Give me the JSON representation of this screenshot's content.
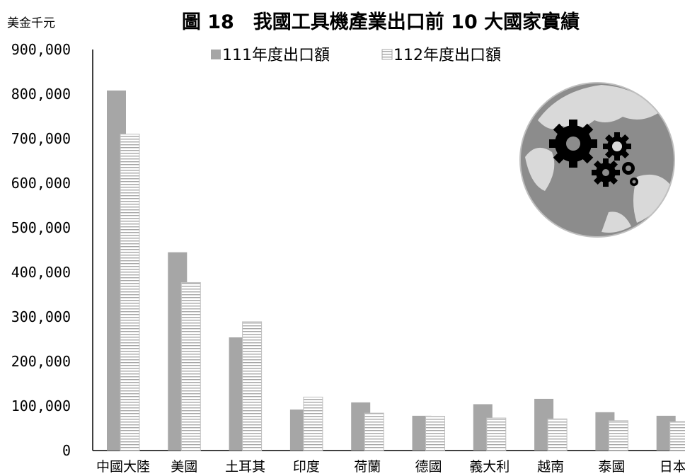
{
  "chart_data": {
    "type": "bar",
    "title": "圖 18　我國工具機產業出口前 10 大國家實績",
    "unit_label": "美金千元",
    "categories": [
      "中國大陸",
      "美國",
      "土耳其",
      "印度",
      "荷蘭",
      "德國",
      "義大利",
      "越南",
      "泰國",
      "日本"
    ],
    "series": [
      {
        "name": "111年度出口額",
        "values": [
          808000,
          445000,
          254000,
          92000,
          108000,
          78000,
          104000,
          116000,
          86000,
          78000
        ],
        "color": "#a6a6a6",
        "pattern": "solid"
      },
      {
        "name": "112年度出口額",
        "values": [
          710000,
          377000,
          289000,
          120000,
          84000,
          77000,
          73000,
          71000,
          67000,
          65000
        ],
        "color": "#ffffff",
        "pattern": "horizontal-stripes"
      }
    ],
    "ylim": [
      0,
      900000
    ],
    "yticks": [
      "0",
      "100,000",
      "200,000",
      "300,000",
      "400,000",
      "500,000",
      "600,000",
      "700,000",
      "800,000",
      "900,000"
    ],
    "yaxis_visible_max_tick": 900000,
    "legend_position": "top-center",
    "grid": false,
    "decoration": "globe-with-gears-icon"
  }
}
